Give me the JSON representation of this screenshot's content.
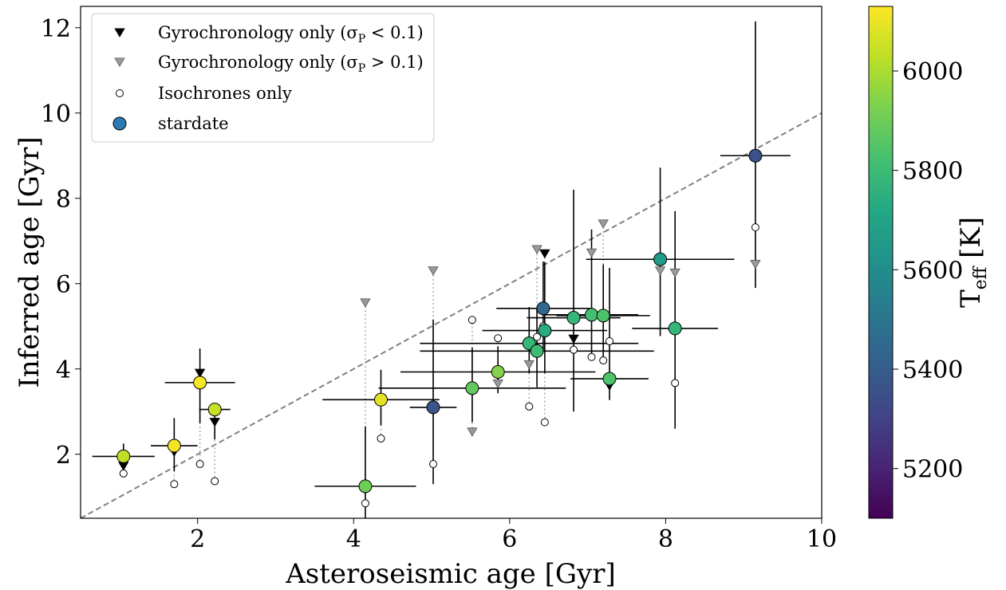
{
  "chart_data": {
    "type": "scatter",
    "xlabel": "Asteroseismic age [Gyr]",
    "ylabel": "Inferred age [Gyr]",
    "xlim": [
      0.5,
      10.0
    ],
    "ylim": [
      0.5,
      12.5
    ],
    "xticks": [
      2,
      4,
      6,
      8,
      10
    ],
    "yticks": [
      2,
      4,
      6,
      8,
      10,
      12
    ],
    "xtick_labels": [
      "2",
      "4",
      "6",
      "8",
      "10"
    ],
    "ytick_labels": [
      "2",
      "4",
      "6",
      "8",
      "10",
      "12"
    ],
    "one_to_one_line": true,
    "legend_placement": "top-left",
    "legend": [
      {
        "label": "Gyrochronology only (σ",
        "sub": "P",
        "tail": " < 0.1)",
        "marker": "triangle-down",
        "color": "#000000"
      },
      {
        "label": "Gyrochronology only (σ",
        "sub": "P",
        "tail": " > 0.1)",
        "marker": "triangle-down",
        "color": "#999999"
      },
      {
        "label": "Isochrones only",
        "sub": "",
        "tail": "",
        "marker": "circle-open",
        "color": "#ffffff"
      },
      {
        "label": "stardate",
        "sub": "",
        "tail": "",
        "marker": "circle",
        "color": "#2e7bb4"
      }
    ],
    "colorbar": {
      "label": "T",
      "label_sub": "eff",
      "label_tail": " [K]",
      "min": 5100,
      "max": 6130,
      "ticks": [
        5200,
        5400,
        5600,
        5800,
        6000
      ],
      "tick_labels": [
        "5200",
        "5400",
        "5600",
        "5800",
        "6000"
      ],
      "colormap": "viridis"
    },
    "stars": [
      {
        "astero": 1.05,
        "xerr": [
          0.4,
          0.4
        ],
        "stardate": 1.95,
        "yerr": [
          0.2,
          0.3
        ],
        "gyro": 1.72,
        "gyro_precise": true,
        "iso": 1.55,
        "teff": 6030
      },
      {
        "astero": 1.7,
        "xerr": [
          0.3,
          0.3
        ],
        "stardate": 2.2,
        "yerr": [
          0.6,
          0.65
        ],
        "gyro": 2.05,
        "gyro_precise": true,
        "iso": 1.3,
        "teff": 6110
      },
      {
        "astero": 2.03,
        "xerr": [
          0.45,
          0.45
        ],
        "stardate": 3.68,
        "yerr": [
          0.95,
          0.8
        ],
        "gyro": 3.9,
        "gyro_precise": true,
        "iso": 1.77,
        "teff": 6120
      },
      {
        "astero": 2.22,
        "xerr": [
          0.2,
          0.2
        ],
        "stardate": 3.05,
        "yerr": [
          0.7,
          0.0
        ],
        "gyro": 2.75,
        "gyro_precise": true,
        "iso": 1.37,
        "teff": 6040
      },
      {
        "astero": 4.15,
        "xerr": [
          0.65,
          0.65
        ],
        "stardate": 1.25,
        "yerr": [
          0.75,
          1.4
        ],
        "gyro": 5.55,
        "gyro_precise": false,
        "iso": 0.85,
        "teff": 5900
      },
      {
        "astero": 4.35,
        "xerr": [
          0.75,
          0.75
        ],
        "stardate": 3.28,
        "yerr": [
          0.6,
          0.7
        ],
        "gyro": 3.2,
        "gyro_precise": false,
        "iso": 2.37,
        "teff": 6090
      },
      {
        "astero": 5.02,
        "xerr": [
          0.3,
          0.3
        ],
        "stardate": 3.1,
        "yerr": [
          1.8,
          2.05
        ],
        "gyro": 6.3,
        "gyro_precise": false,
        "iso": 1.77,
        "teff": 5370
      },
      {
        "astero": 5.52,
        "xerr": [
          1.2,
          1.2
        ],
        "stardate": 3.55,
        "yerr": [
          0.8,
          0.95
        ],
        "gyro": 2.52,
        "gyro_precise": false,
        "iso": 5.15,
        "teff": 5880
      },
      {
        "astero": 5.85,
        "xerr": [
          1.25,
          1.25
        ],
        "stardate": 3.93,
        "yerr": [
          0.5,
          0.6
        ],
        "gyro": 3.65,
        "gyro_precise": false,
        "iso": 4.72,
        "teff": 5940
      },
      {
        "astero": 6.25,
        "xerr": [
          1.4,
          1.4
        ],
        "stardate": 4.6,
        "yerr": [
          0.7,
          0.85
        ],
        "gyro": 4.1,
        "gyro_precise": false,
        "iso": 3.12,
        "teff": 5780
      },
      {
        "astero": 6.35,
        "xerr": [
          1.5,
          1.5
        ],
        "stardate": 4.42,
        "yerr": [
          0.85,
          1.0
        ],
        "gyro": 6.8,
        "gyro_precise": false,
        "iso": 4.75,
        "teff": 5800
      },
      {
        "astero": 6.43,
        "xerr": [
          0.6,
          0.6
        ],
        "stardate": 5.42,
        "yerr": [
          1.0,
          1.1
        ],
        "gyro": 5.4,
        "gyro_precise": false,
        "iso": 5.0,
        "teff": 5450
      },
      {
        "astero": 6.45,
        "xerr": [
          0.8,
          0.8
        ],
        "stardate": 4.9,
        "yerr": [
          1.0,
          1.6
        ],
        "gyro": 6.7,
        "gyro_precise": true,
        "iso": 2.75,
        "teff": 5740
      },
      {
        "astero": 6.82,
        "xerr": [
          0.6,
          0.6
        ],
        "stardate": 5.2,
        "yerr": [
          2.2,
          3.0
        ],
        "gyro": 4.7,
        "gyro_precise": true,
        "iso": 4.45,
        "teff": 5780
      },
      {
        "astero": 7.05,
        "xerr": [
          0.6,
          0.6
        ],
        "stardate": 5.27,
        "yerr": [
          1.0,
          2.0
        ],
        "gyro": 6.72,
        "gyro_precise": false,
        "iso": 4.28,
        "teff": 5820
      },
      {
        "astero": 7.2,
        "xerr": [
          0.6,
          0.6
        ],
        "stardate": 5.25,
        "yerr": [
          1.0,
          1.2
        ],
        "gyro": 7.4,
        "gyro_precise": false,
        "iso": 4.2,
        "teff": 5840
      },
      {
        "astero": 7.28,
        "xerr": [
          0.5,
          0.5
        ],
        "stardate": 3.77,
        "yerr": [
          0.5,
          2.6
        ],
        "gyro": 3.6,
        "gyro_precise": true,
        "iso": 4.65,
        "teff": 5840
      },
      {
        "astero": 7.93,
        "xerr": [
          0.95,
          0.95
        ],
        "stardate": 6.57,
        "yerr": [
          1.8,
          2.15
        ],
        "gyro": 6.3,
        "gyro_precise": false,
        "iso": 6.55,
        "teff": 5660
      },
      {
        "astero": 8.12,
        "xerr": [
          0.55,
          0.55
        ],
        "stardate": 4.95,
        "yerr": [
          2.35,
          2.75
        ],
        "gyro": 6.25,
        "gyro_precise": false,
        "iso": 3.67,
        "teff": 5780
      },
      {
        "astero": 9.15,
        "xerr": [
          0.45,
          0.45
        ],
        "stardate": 9.0,
        "yerr": [
          3.1,
          3.15
        ],
        "gyro": 6.45,
        "gyro_precise": false,
        "iso": 7.32,
        "teff": 5360
      }
    ]
  }
}
